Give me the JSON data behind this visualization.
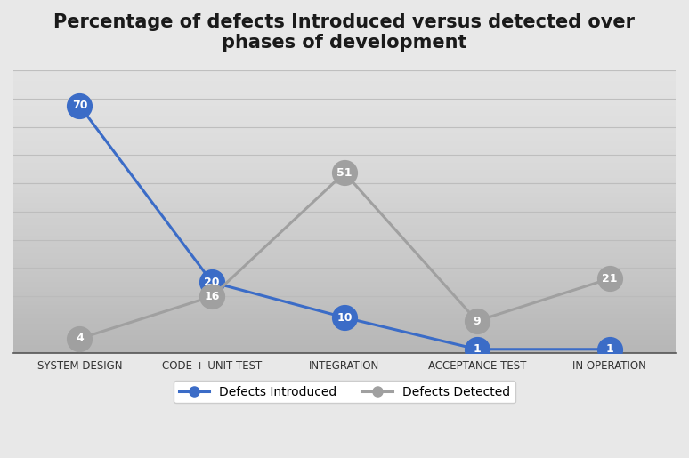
{
  "title": "Percentage of defects Introduced versus detected over\nphases of development",
  "categories": [
    "SYSTEM DESIGN",
    "CODE + UNIT TEST",
    "INTEGRATION",
    "ACCEPTANCE TEST",
    "IN OPERATION"
  ],
  "introduced": [
    70,
    20,
    10,
    1,
    1
  ],
  "detected": [
    4,
    16,
    51,
    9,
    21
  ],
  "introduced_labels": [
    "70",
    "20",
    "10",
    "1",
    "1"
  ],
  "detected_labels": [
    "4",
    "16",
    "51",
    "9",
    "21"
  ],
  "introduced_color": "#3B6CC7",
  "detected_color": "#A0A0A0",
  "background_color": "#E8E8E8",
  "plot_bg_top": "#F0F0F0",
  "plot_bg_bottom": "#C8C8C8",
  "grid_color": "#BBBBBB",
  "title_fontsize": 15,
  "label_fontsize": 9,
  "tick_fontsize": 8.5,
  "legend_fontsize": 10,
  "ylim": [
    0,
    80
  ],
  "n_gridlines": 10,
  "marker_size": 20,
  "line_width": 2.2,
  "legend_label_introduced": "Defects Introduced",
  "legend_label_detected": "Defects Detected"
}
